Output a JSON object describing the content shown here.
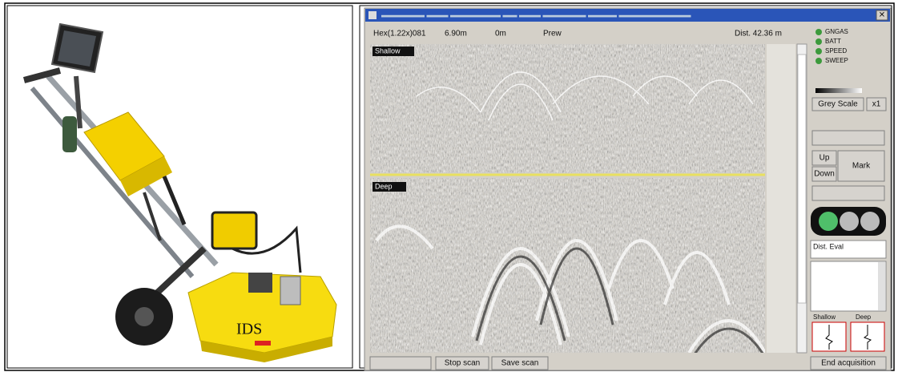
{
  "device": {
    "brand": "IDS"
  },
  "window": {
    "toolbar": {
      "file": "Hex(1.22x)081",
      "depth": "6.90m",
      "position": "0m",
      "mode": "Prew",
      "distance": "Dist. 42.36 m"
    },
    "status": [
      "GNGAS",
      "BATT",
      "SPEED",
      "SWEEP"
    ],
    "controls": {
      "scale": "Grey Scale",
      "zoom": "x1",
      "up": "Up",
      "down": "Down",
      "mark": "Mark",
      "eval": "Dist. Eval"
    },
    "panels": {
      "shallow": "Shallow",
      "deep": "Deep"
    },
    "mini": {
      "shallow": "Shallow",
      "deep": "Deep"
    },
    "buttons": {
      "stop": "Stop scan",
      "save": "Save scan",
      "end": "End acquisition"
    }
  }
}
